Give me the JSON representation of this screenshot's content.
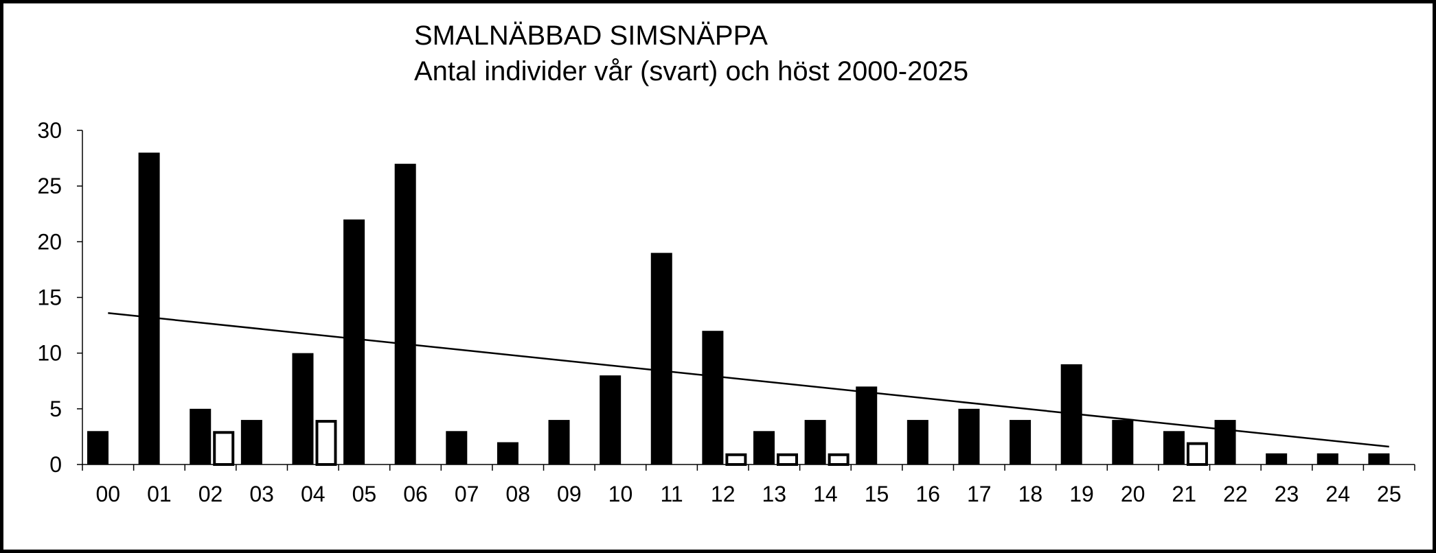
{
  "chart_data": {
    "type": "bar",
    "title": "SMALNÄBBAD SIMSNÄPPA",
    "subtitle": "Antal individer vår (svart) och höst 2000-2025",
    "xlabel": "",
    "ylabel": "",
    "ylim": [
      0,
      30
    ],
    "yticks": [
      0,
      5,
      10,
      15,
      20,
      25,
      30
    ],
    "grid": false,
    "categories": [
      "00",
      "01",
      "02",
      "03",
      "04",
      "05",
      "06",
      "07",
      "08",
      "09",
      "10",
      "11",
      "12",
      "13",
      "14",
      "15",
      "16",
      "17",
      "18",
      "19",
      "20",
      "21",
      "22",
      "23",
      "24",
      "25"
    ],
    "series": [
      {
        "fill": "#000000",
        "values": [
          3,
          28,
          5,
          4,
          10,
          22,
          27,
          3,
          2,
          4,
          8,
          19,
          12,
          3,
          4,
          7,
          4,
          5,
          4,
          9,
          4,
          3,
          4,
          1,
          1,
          1
        ]
      },
      {
        "fill": "#ffffff",
        "stroke": "#000000",
        "values": [
          0,
          0,
          3,
          0,
          4,
          0,
          0,
          0,
          0,
          0,
          0,
          0,
          1,
          1,
          1,
          0,
          0,
          0,
          0,
          0,
          0,
          2,
          0,
          0,
          0,
          0
        ]
      }
    ],
    "trendline": {
      "series_index": 0,
      "type": "linear",
      "color": "#000000",
      "start_value": 13.6,
      "end_value": 1.6
    }
  }
}
